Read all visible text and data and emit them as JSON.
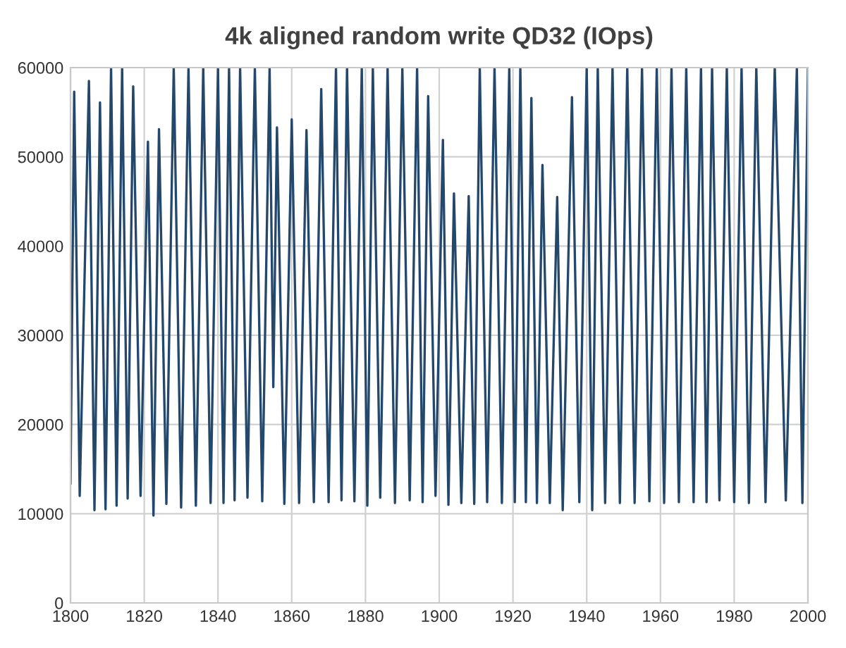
{
  "chart_data": {
    "type": "line",
    "title": "4k aligned random write QD32 (IOps)",
    "x": [
      1800,
      1801,
      1802.5,
      1805,
      1806.5,
      1808,
      1809.5,
      1811,
      1812.5,
      1814,
      1815.5,
      1817,
      1819,
      1821,
      1822.5,
      1824,
      1826,
      1828,
      1830,
      1832,
      1834,
      1836,
      1838,
      1840,
      1841.5,
      1843,
      1844.5,
      1846,
      1848,
      1850,
      1852,
      1854,
      1855,
      1856,
      1858,
      1860,
      1862,
      1864,
      1866,
      1868,
      1870,
      1872,
      1873.5,
      1875,
      1877,
      1879,
      1880.5,
      1882,
      1884,
      1886,
      1888,
      1890,
      1892,
      1894,
      1895.5,
      1897,
      1899,
      1901,
      1902.5,
      1904,
      1906,
      1908,
      1909.5,
      1911,
      1913,
      1915,
      1917,
      1919,
      1920.5,
      1922,
      1923.5,
      1925,
      1926.5,
      1928,
      1930,
      1932,
      1933.5,
      1936,
      1938,
      1940,
      1941.5,
      1943,
      1945,
      1947,
      1949,
      1951,
      1953,
      1955,
      1957,
      1959,
      1961,
      1963,
      1965,
      1967,
      1969,
      1971,
      1972.5,
      1974,
      1976,
      1978,
      1980,
      1982,
      1984,
      1986,
      1988.5,
      1991,
      1994,
      1997,
      1998.5,
      2000
    ],
    "series": [
      {
        "color": "#24486b",
        "values": [
          13400,
          57300,
          12000,
          58500,
          10400,
          56100,
          10500,
          60000,
          10900,
          60000,
          11700,
          57900,
          12000,
          51700,
          9800,
          53100,
          11100,
          60000,
          10700,
          60000,
          10900,
          60000,
          11200,
          60000,
          11200,
          60000,
          11500,
          60000,
          11800,
          60000,
          11400,
          60000,
          24200,
          53300,
          11100,
          54200,
          11200,
          53000,
          11300,
          57600,
          11300,
          60000,
          11500,
          60000,
          11400,
          60000,
          10900,
          60000,
          11800,
          60000,
          11200,
          60000,
          11500,
          60000,
          11300,
          56800,
          12000,
          51900,
          11000,
          45900,
          11200,
          45600,
          11100,
          60000,
          11300,
          60000,
          11200,
          60000,
          11300,
          60000,
          11300,
          56600,
          11200,
          49100,
          11200,
          45500,
          10400,
          56700,
          11300,
          60000,
          10400,
          60000,
          11200,
          60000,
          11200,
          60000,
          11200,
          60000,
          11400,
          60000,
          11200,
          60000,
          11300,
          60000,
          11300,
          60000,
          11300,
          60000,
          11500,
          60000,
          11300,
          60000,
          11200,
          60000,
          11300,
          60000,
          11500,
          60000,
          11200,
          60000
        ]
      }
    ],
    "xlim": [
      1800,
      2000
    ],
    "xticks": [
      1800,
      1820,
      1840,
      1860,
      1880,
      1900,
      1920,
      1940,
      1960,
      1980,
      2000
    ],
    "ylim": [
      0,
      60000
    ],
    "yticks": [
      0,
      10000,
      20000,
      30000,
      40000,
      50000,
      60000
    ],
    "grid": true,
    "marker": "none",
    "line_style": "solid",
    "legend": false
  }
}
